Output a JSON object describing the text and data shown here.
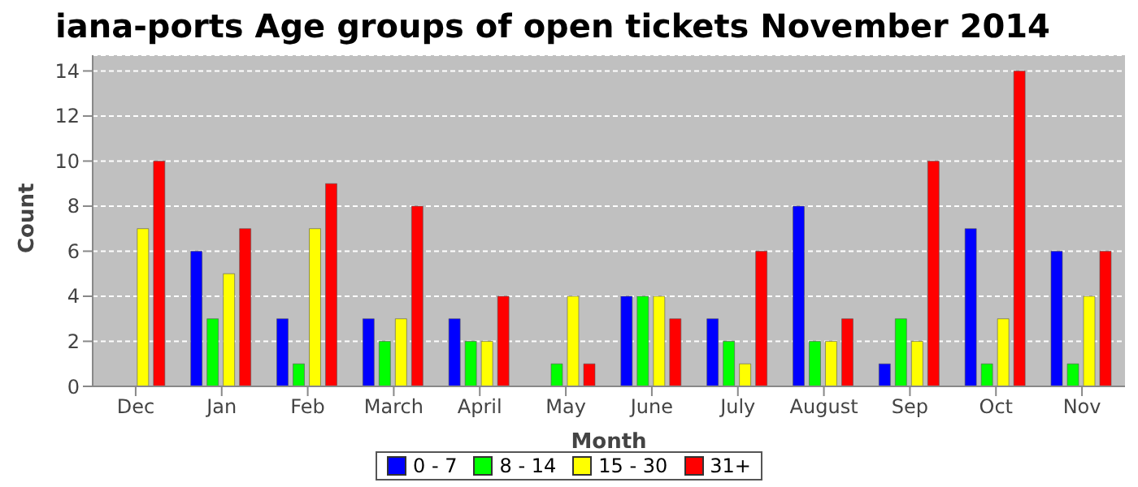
{
  "chart_data": {
    "type": "bar",
    "title": "iana-ports Age groups of open tickets November 2014",
    "xlabel": "Month",
    "ylabel": "Count",
    "categories": [
      "Dec",
      "Jan",
      "Feb",
      "March",
      "April",
      "May",
      "June",
      "July",
      "August",
      "Sep",
      "Oct",
      "Nov"
    ],
    "series": [
      {
        "name": "0 - 7",
        "color": "#0000ff",
        "values": [
          0,
          6,
          3,
          3,
          3,
          0,
          4,
          3,
          8,
          1,
          7,
          6
        ]
      },
      {
        "name": "8 - 14",
        "color": "#00ff00",
        "values": [
          0,
          3,
          1,
          2,
          2,
          1,
          4,
          2,
          2,
          3,
          1,
          1
        ]
      },
      {
        "name": "15 - 30",
        "color": "#ffff00",
        "values": [
          7,
          5,
          7,
          3,
          2,
          4,
          4,
          1,
          2,
          2,
          3,
          4
        ]
      },
      {
        "name": "31+",
        "color": "#ff0000",
        "values": [
          10,
          7,
          9,
          8,
          4,
          1,
          3,
          6,
          3,
          10,
          14,
          6
        ]
      }
    ],
    "ylim": [
      0,
      14.7
    ],
    "yticks": [
      0,
      2,
      4,
      6,
      8,
      10,
      12,
      14
    ],
    "grid": "y",
    "legend": "bottom"
  }
}
